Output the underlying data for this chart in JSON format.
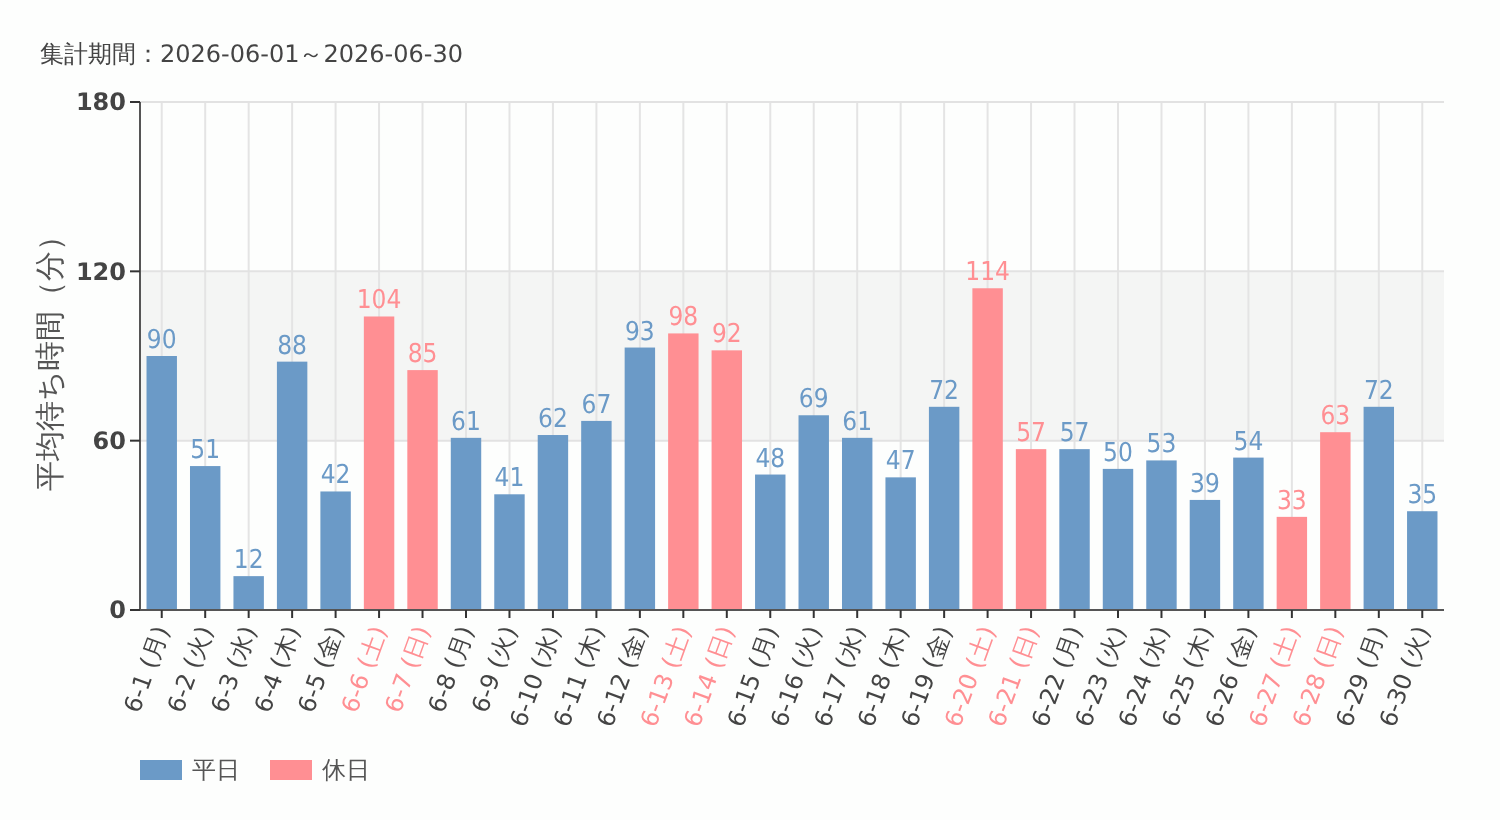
{
  "chart_data": {
    "type": "bar",
    "title": "集計期間：2026-06-01～2026-06-30",
    "ylabel": "平均待ち時間（分）",
    "categories": [
      "6-1 (月)",
      "6-2 (火)",
      "6-3 (水)",
      "6-4 (木)",
      "6-5 (金)",
      "6-6 (土)",
      "6-7 (日)",
      "6-8 (月)",
      "6-9 (火)",
      "6-10 (水)",
      "6-11 (木)",
      "6-12 (金)",
      "6-13 (土)",
      "6-14 (日)",
      "6-15 (月)",
      "6-16 (火)",
      "6-17 (水)",
      "6-18 (木)",
      "6-19 (金)",
      "6-20 (土)",
      "6-21 (日)",
      "6-22 (月)",
      "6-23 (火)",
      "6-24 (水)",
      "6-25 (木)",
      "6-26 (金)",
      "6-27 (土)",
      "6-28 (日)",
      "6-29 (月)",
      "6-30 (火)"
    ],
    "series": [
      {
        "name": "平日",
        "color": "#6b9ac7",
        "values": [
          90,
          51,
          12,
          88,
          42,
          null,
          null,
          61,
          41,
          62,
          67,
          93,
          null,
          null,
          48,
          69,
          61,
          47,
          72,
          null,
          null,
          57,
          50,
          53,
          39,
          54,
          null,
          null,
          72,
          35
        ]
      },
      {
        "name": "休日",
        "color": "#ff8f93",
        "values": [
          null,
          null,
          null,
          null,
          null,
          104,
          85,
          null,
          null,
          null,
          null,
          null,
          98,
          92,
          null,
          null,
          null,
          null,
          null,
          114,
          57,
          null,
          null,
          null,
          null,
          null,
          33,
          63,
          null,
          null
        ]
      }
    ],
    "ylim": [
      0,
      180
    ],
    "yticks": [
      0,
      60,
      120,
      180
    ],
    "grid": true,
    "legend": "bottom left",
    "data_labels": true,
    "bands": [
      {
        "axis": "y",
        "from": 60,
        "to": 120,
        "color": "#f4f5f4"
      }
    ]
  }
}
